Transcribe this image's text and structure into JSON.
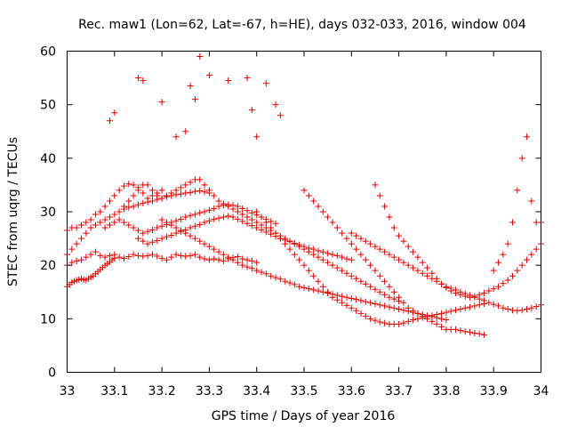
{
  "chart_data": {
    "type": "scatter",
    "title": "Rec. maw1 (Lon=62, Lat=-67, h=HE), days 032-033, 2016, window 004",
    "xlabel": "GPS time / Days of year 2016",
    "ylabel": "STEC from uqrg / TECUs",
    "xlim": [
      33,
      34
    ],
    "ylim": [
      0,
      60
    ],
    "x_ticks": [
      "33",
      "33.1",
      "33.2",
      "33.3",
      "33.4",
      "33.5",
      "33.6",
      "33.7",
      "33.8",
      "33.9",
      "34"
    ],
    "y_ticks": [
      "0",
      "10",
      "20",
      "30",
      "40",
      "50",
      "60"
    ],
    "grid": false,
    "marker": "plus",
    "color": "#dd0000",
    "series_count": 14,
    "series": [
      {
        "x": [
          33.0,
          33.005,
          33.01,
          33.015,
          33.02,
          33.025,
          33.03,
          33.035,
          33.04,
          33.045,
          33.05,
          33.055,
          33.06,
          33.065,
          33.07,
          33.075,
          33.08,
          33.085,
          33.09,
          33.095,
          33.1
        ],
        "values": [
          16.0,
          16.4,
          16.8,
          17.0,
          17.2,
          17.3,
          17.5,
          17.3,
          17.2,
          17.5,
          17.8,
          18.0,
          18.4,
          18.8,
          19.2,
          19.6,
          20.0,
          20.3,
          20.6,
          21.0,
          21.3
        ]
      },
      {
        "x": [
          33.0,
          33.01,
          33.02,
          33.03,
          33.04,
          33.05,
          33.06,
          33.07,
          33.08,
          33.09,
          33.1,
          33.11,
          33.12,
          33.13,
          33.14,
          33.15,
          33.16,
          33.17,
          33.18,
          33.19,
          33.2,
          33.21,
          33.22,
          33.23,
          33.24,
          33.25,
          33.26,
          33.27,
          33.28,
          33.29,
          33.3,
          33.31,
          33.32,
          33.33,
          33.34,
          33.35,
          33.36,
          33.37,
          33.38,
          33.39,
          33.4
        ],
        "values": [
          20.0,
          20.5,
          20.8,
          21.0,
          21.5,
          22.0,
          22.5,
          21.8,
          21.5,
          21.8,
          22.0,
          21.5,
          21.3,
          21.6,
          22.0,
          21.8,
          21.7,
          21.8,
          22.0,
          21.7,
          21.3,
          21.0,
          21.5,
          22.0,
          21.8,
          21.7,
          21.8,
          22.0,
          21.5,
          21.2,
          21.0,
          21.2,
          21.0,
          20.8,
          21.2,
          21.4,
          21.6,
          21.2,
          21.0,
          20.8,
          20.5
        ]
      },
      {
        "x": [
          33.0,
          33.01,
          33.02,
          33.03,
          33.04,
          33.05,
          33.06,
          33.07,
          33.08,
          33.09,
          33.1,
          33.11,
          33.12,
          33.13,
          33.14,
          33.15,
          33.16,
          33.17,
          33.18,
          33.19,
          33.2,
          33.21,
          33.22,
          33.23,
          33.24,
          33.25,
          33.26,
          33.27,
          33.28,
          33.29,
          33.3
        ],
        "values": [
          22.0,
          23.0,
          24.0,
          25.0,
          26.0,
          27.0,
          27.5,
          28.0,
          28.5,
          29.0,
          29.5,
          30.0,
          30.5,
          30.8,
          31.0,
          31.3,
          31.6,
          31.8,
          32.0,
          32.3,
          32.5,
          32.8,
          33.0,
          33.2,
          33.3,
          33.5,
          33.6,
          33.8,
          33.9,
          33.7,
          33.5
        ]
      },
      {
        "x": [
          33.0,
          33.01,
          33.02,
          33.03,
          33.04,
          33.05,
          33.06,
          33.07,
          33.08,
          33.09,
          33.1,
          33.11,
          33.12,
          33.13,
          33.14,
          33.15,
          33.16,
          33.17,
          33.18,
          33.19,
          33.2
        ],
        "values": [
          26.5,
          27.0,
          27.0,
          27.5,
          28.0,
          28.5,
          29.5,
          30.0,
          31.0,
          32.0,
          33.0,
          34.0,
          34.8,
          35.2,
          35.0,
          34.5,
          33.5,
          32.5,
          33.0,
          33.5,
          34.0
        ]
      },
      {
        "x": [
          33.08,
          33.09,
          33.1,
          33.11,
          33.12,
          33.13,
          33.14,
          33.15,
          33.16,
          33.17,
          33.18,
          33.19,
          33.2,
          33.21,
          33.22,
          33.23,
          33.24,
          33.25,
          33.26,
          33.27,
          33.28,
          33.29,
          33.3,
          33.31,
          33.32,
          33.33,
          33.34,
          33.35,
          33.36,
          33.37,
          33.38,
          33.39,
          33.4,
          33.41,
          33.42,
          33.43,
          33.44
        ],
        "values": [
          27.0,
          27.5,
          28.0,
          28.5,
          28.0,
          27.5,
          27.0,
          26.5,
          26.0,
          26.3,
          26.6,
          27.0,
          27.3,
          27.6,
          28.0,
          28.3,
          28.6,
          29.0,
          29.3,
          29.5,
          29.8,
          30.0,
          30.3,
          30.6,
          31.0,
          31.2,
          31.3,
          31.2,
          31.0,
          30.6,
          30.2,
          29.8,
          29.4,
          29.0,
          28.6,
          28.2,
          27.8
        ]
      },
      {
        "x": [
          33.15,
          33.16,
          33.17,
          33.18,
          33.19,
          33.2,
          33.21,
          33.22,
          33.23,
          33.24,
          33.25,
          33.26,
          33.27,
          33.28,
          33.29,
          33.3,
          33.31,
          33.32,
          33.33,
          33.34,
          33.35,
          33.36,
          33.37,
          33.38,
          33.39,
          33.4,
          33.41,
          33.42,
          33.43,
          33.44,
          33.45,
          33.46,
          33.47,
          33.48,
          33.49,
          33.5,
          33.51,
          33.52,
          33.53,
          33.54,
          33.55,
          33.56,
          33.57,
          33.58,
          33.59,
          33.6
        ],
        "values": [
          25.0,
          24.5,
          24.0,
          24.3,
          24.6,
          25.0,
          25.3,
          25.6,
          26.0,
          26.3,
          26.6,
          27.0,
          27.3,
          27.6,
          28.0,
          28.3,
          28.6,
          28.8,
          29.0,
          29.2,
          29.0,
          28.6,
          28.2,
          27.8,
          27.4,
          27.0,
          26.6,
          26.2,
          25.8,
          25.4,
          25.0,
          24.7,
          24.4,
          24.1,
          23.8,
          23.5,
          23.2,
          23.0,
          22.7,
          22.5,
          22.2,
          22.0,
          21.8,
          21.5,
          21.2,
          21.0
        ]
      },
      {
        "x": [
          33.12,
          33.13,
          33.14,
          33.15,
          33.16,
          33.17,
          33.18,
          33.19,
          33.2,
          33.21,
          33.22,
          33.23,
          33.24,
          33.25,
          33.26,
          33.27,
          33.28,
          33.29,
          33.3,
          33.31,
          33.32,
          33.33,
          33.34,
          33.35,
          33.36,
          33.37,
          33.38,
          33.39,
          33.4,
          33.41,
          33.42,
          33.43,
          33.44,
          33.45,
          33.46,
          33.47,
          33.48,
          33.49,
          33.5,
          33.51,
          33.52,
          33.53,
          33.54,
          33.55,
          33.56,
          33.57,
          33.58,
          33.59,
          33.6,
          33.61,
          33.62,
          33.63,
          33.64,
          33.65,
          33.66,
          33.67,
          33.68,
          33.69,
          33.7
        ],
        "values": [
          31.0,
          32.0,
          33.0,
          34.0,
          35.0,
          35.0,
          34.0,
          33.0,
          32.5,
          33.0,
          33.5,
          34.0,
          34.5,
          35.0,
          35.5,
          36.0,
          36.0,
          35.0,
          34.0,
          33.0,
          32.0,
          31.5,
          31.0,
          30.5,
          30.0,
          29.5,
          29.0,
          28.5,
          28.0,
          27.5,
          27.0,
          26.5,
          26.0,
          25.5,
          25.0,
          24.5,
          24.0,
          23.5,
          23.0,
          22.5,
          22.0,
          21.5,
          21.0,
          20.5,
          20.0,
          19.5,
          19.0,
          18.5,
          18.0,
          17.5,
          17.0,
          16.5,
          16.0,
          15.5,
          15.0,
          14.5,
          14.0,
          13.7,
          13.3
        ]
      },
      {
        "x": [
          33.2,
          33.21,
          33.22,
          33.23,
          33.24,
          33.25,
          33.26,
          33.27,
          33.28,
          33.29,
          33.3,
          33.31,
          33.32,
          33.33,
          33.34,
          33.35,
          33.36,
          33.37,
          33.38,
          33.39,
          33.4,
          33.41,
          33.42,
          33.43,
          33.44,
          33.45,
          33.46,
          33.47,
          33.48,
          33.49,
          33.5,
          33.51,
          33.52,
          33.53,
          33.54,
          33.55,
          33.56,
          33.57,
          33.58,
          33.59,
          33.6,
          33.61,
          33.62,
          33.63,
          33.64,
          33.65,
          33.66,
          33.67,
          33.68,
          33.69,
          33.7,
          33.71,
          33.72,
          33.73,
          33.74,
          33.75,
          33.76,
          33.77,
          33.78,
          33.79,
          33.8
        ],
        "values": [
          28.5,
          28.0,
          27.5,
          27.0,
          26.5,
          26.0,
          25.5,
          25.0,
          24.5,
          24.0,
          23.5,
          23.0,
          22.5,
          22.0,
          21.5,
          21.0,
          20.5,
          20.0,
          19.7,
          19.4,
          19.0,
          18.7,
          18.4,
          18.0,
          17.7,
          17.4,
          17.0,
          16.7,
          16.4,
          16.0,
          15.8,
          15.6,
          15.4,
          15.2,
          15.0,
          14.8,
          14.6,
          14.4,
          14.2,
          14.0,
          13.8,
          13.6,
          13.4,
          13.2,
          13.0,
          12.8,
          12.6,
          12.4,
          12.2,
          12.0,
          11.8,
          11.6,
          11.4,
          11.2,
          11.0,
          10.8,
          10.6,
          10.4,
          10.2,
          10.0,
          9.8
        ]
      },
      {
        "x": [
          33.4,
          33.41,
          33.42,
          33.43,
          33.44,
          33.45,
          33.46,
          33.47,
          33.48,
          33.49,
          33.5,
          33.51,
          33.52,
          33.53,
          33.54,
          33.55,
          33.56,
          33.57,
          33.58,
          33.59,
          33.6,
          33.61,
          33.62,
          33.63,
          33.64,
          33.65,
          33.66,
          33.67,
          33.68,
          33.69,
          33.7,
          33.71,
          33.72,
          33.73,
          33.74,
          33.75,
          33.76,
          33.77,
          33.78,
          33.79,
          33.8,
          33.81,
          33.82,
          33.83,
          33.84,
          33.85,
          33.86,
          33.87,
          33.88
        ],
        "values": [
          30.0,
          29.0,
          28.0,
          27.0,
          26.0,
          25.0,
          24.0,
          23.0,
          22.0,
          21.0,
          20.0,
          19.0,
          18.0,
          17.0,
          16.0,
          15.0,
          14.0,
          13.5,
          13.0,
          12.5,
          12.0,
          11.5,
          11.0,
          10.5,
          10.0,
          9.7,
          9.4,
          9.2,
          9.0,
          9.0,
          9.0,
          9.2,
          9.5,
          9.8,
          10.0,
          10.2,
          10.4,
          10.6,
          10.8,
          11.0,
          11.2,
          11.4,
          11.6,
          11.8,
          12.0,
          12.2,
          12.4,
          12.6,
          12.8
        ]
      },
      {
        "x": [
          33.5,
          33.51,
          33.52,
          33.53,
          33.54,
          33.55,
          33.56,
          33.57,
          33.58,
          33.59,
          33.6,
          33.61,
          33.62,
          33.63,
          33.64,
          33.65,
          33.66,
          33.67,
          33.68,
          33.69,
          33.7,
          33.71,
          33.72,
          33.73,
          33.74,
          33.75,
          33.76,
          33.77,
          33.78,
          33.79,
          33.8,
          33.81,
          33.82,
          33.83,
          33.84,
          33.85,
          33.86,
          33.87,
          33.88
        ],
        "values": [
          34.0,
          33.0,
          32.0,
          31.0,
          30.0,
          29.0,
          28.0,
          27.0,
          26.0,
          25.0,
          24.0,
          23.0,
          22.0,
          21.0,
          20.0,
          19.0,
          18.0,
          17.0,
          16.0,
          15.0,
          14.0,
          13.0,
          12.0,
          11.5,
          11.0,
          10.5,
          10.0,
          9.5,
          9.0,
          8.5,
          8.0,
          8.0,
          8.0,
          7.8,
          7.6,
          7.5,
          7.3,
          7.2,
          7.0
        ]
      },
      {
        "x": [
          33.6,
          33.61,
          33.62,
          33.63,
          33.64,
          33.65,
          33.66,
          33.67,
          33.68,
          33.69,
          33.7,
          33.71,
          33.72,
          33.73,
          33.74,
          33.75,
          33.76,
          33.77,
          33.78,
          33.79,
          33.8,
          33.81,
          33.82,
          33.83,
          33.84,
          33.85,
          33.86,
          33.87,
          33.88,
          33.89,
          33.9,
          33.91,
          33.92,
          33.93,
          33.94,
          33.95,
          33.96,
          33.97,
          33.98,
          33.99,
          34.0
        ],
        "values": [
          26.0,
          25.5,
          25.0,
          24.5,
          24.0,
          23.5,
          23.0,
          22.5,
          22.0,
          21.5,
          21.0,
          20.5,
          20.0,
          19.5,
          19.0,
          18.5,
          18.0,
          17.5,
          17.0,
          16.5,
          16.0,
          15.7,
          15.4,
          15.0,
          14.7,
          14.4,
          14.0,
          13.7,
          13.4,
          13.0,
          12.7,
          12.4,
          12.0,
          11.8,
          11.6,
          11.5,
          11.6,
          11.8,
          12.0,
          12.3,
          12.6
        ]
      },
      {
        "x": [
          33.65,
          33.66,
          33.67,
          33.68,
          33.69,
          33.7,
          33.71,
          33.72,
          33.73,
          33.74,
          33.75,
          33.76,
          33.77,
          33.78,
          33.79,
          33.8,
          33.81,
          33.82,
          33.83,
          33.84,
          33.85,
          33.86,
          33.87,
          33.88,
          33.89,
          33.9,
          33.91,
          33.92,
          33.93,
          33.94,
          33.95,
          33.96,
          33.97,
          33.98,
          33.99,
          34.0
        ],
        "values": [
          35.0,
          33.0,
          31.0,
          29.0,
          27.0,
          25.5,
          24.5,
          23.5,
          22.5,
          21.5,
          20.5,
          19.5,
          18.5,
          17.5,
          16.5,
          15.8,
          15.2,
          14.8,
          14.5,
          14.2,
          14.0,
          14.2,
          14.5,
          14.8,
          15.2,
          15.6,
          16.0,
          16.6,
          17.2,
          18.0,
          19.0,
          20.0,
          21.0,
          22.0,
          23.0,
          24.0
        ]
      },
      {
        "x": [
          33.9,
          33.91,
          33.92,
          33.93,
          33.94,
          33.95,
          33.96,
          33.97,
          33.98,
          33.99,
          34.0
        ],
        "values": [
          19.0,
          20.5,
          22.0,
          24.0,
          28.0,
          34.0,
          40.0,
          44.0,
          32.0,
          28.0,
          28.0
        ]
      },
      {
        "x": [
          33.09,
          33.1,
          33.15,
          33.16,
          33.2,
          33.23,
          33.25,
          33.26,
          33.27,
          33.28,
          33.3,
          33.34,
          33.38,
          33.39,
          33.4,
          33.42,
          33.44,
          33.45
        ],
        "values": [
          47.0,
          48.5,
          55.0,
          54.5,
          50.5,
          44.0,
          45.0,
          53.5,
          51.0,
          59.0,
          55.5,
          54.5,
          55.0,
          49.0,
          44.0,
          54.0,
          50.0,
          48.0
        ]
      }
    ]
  }
}
